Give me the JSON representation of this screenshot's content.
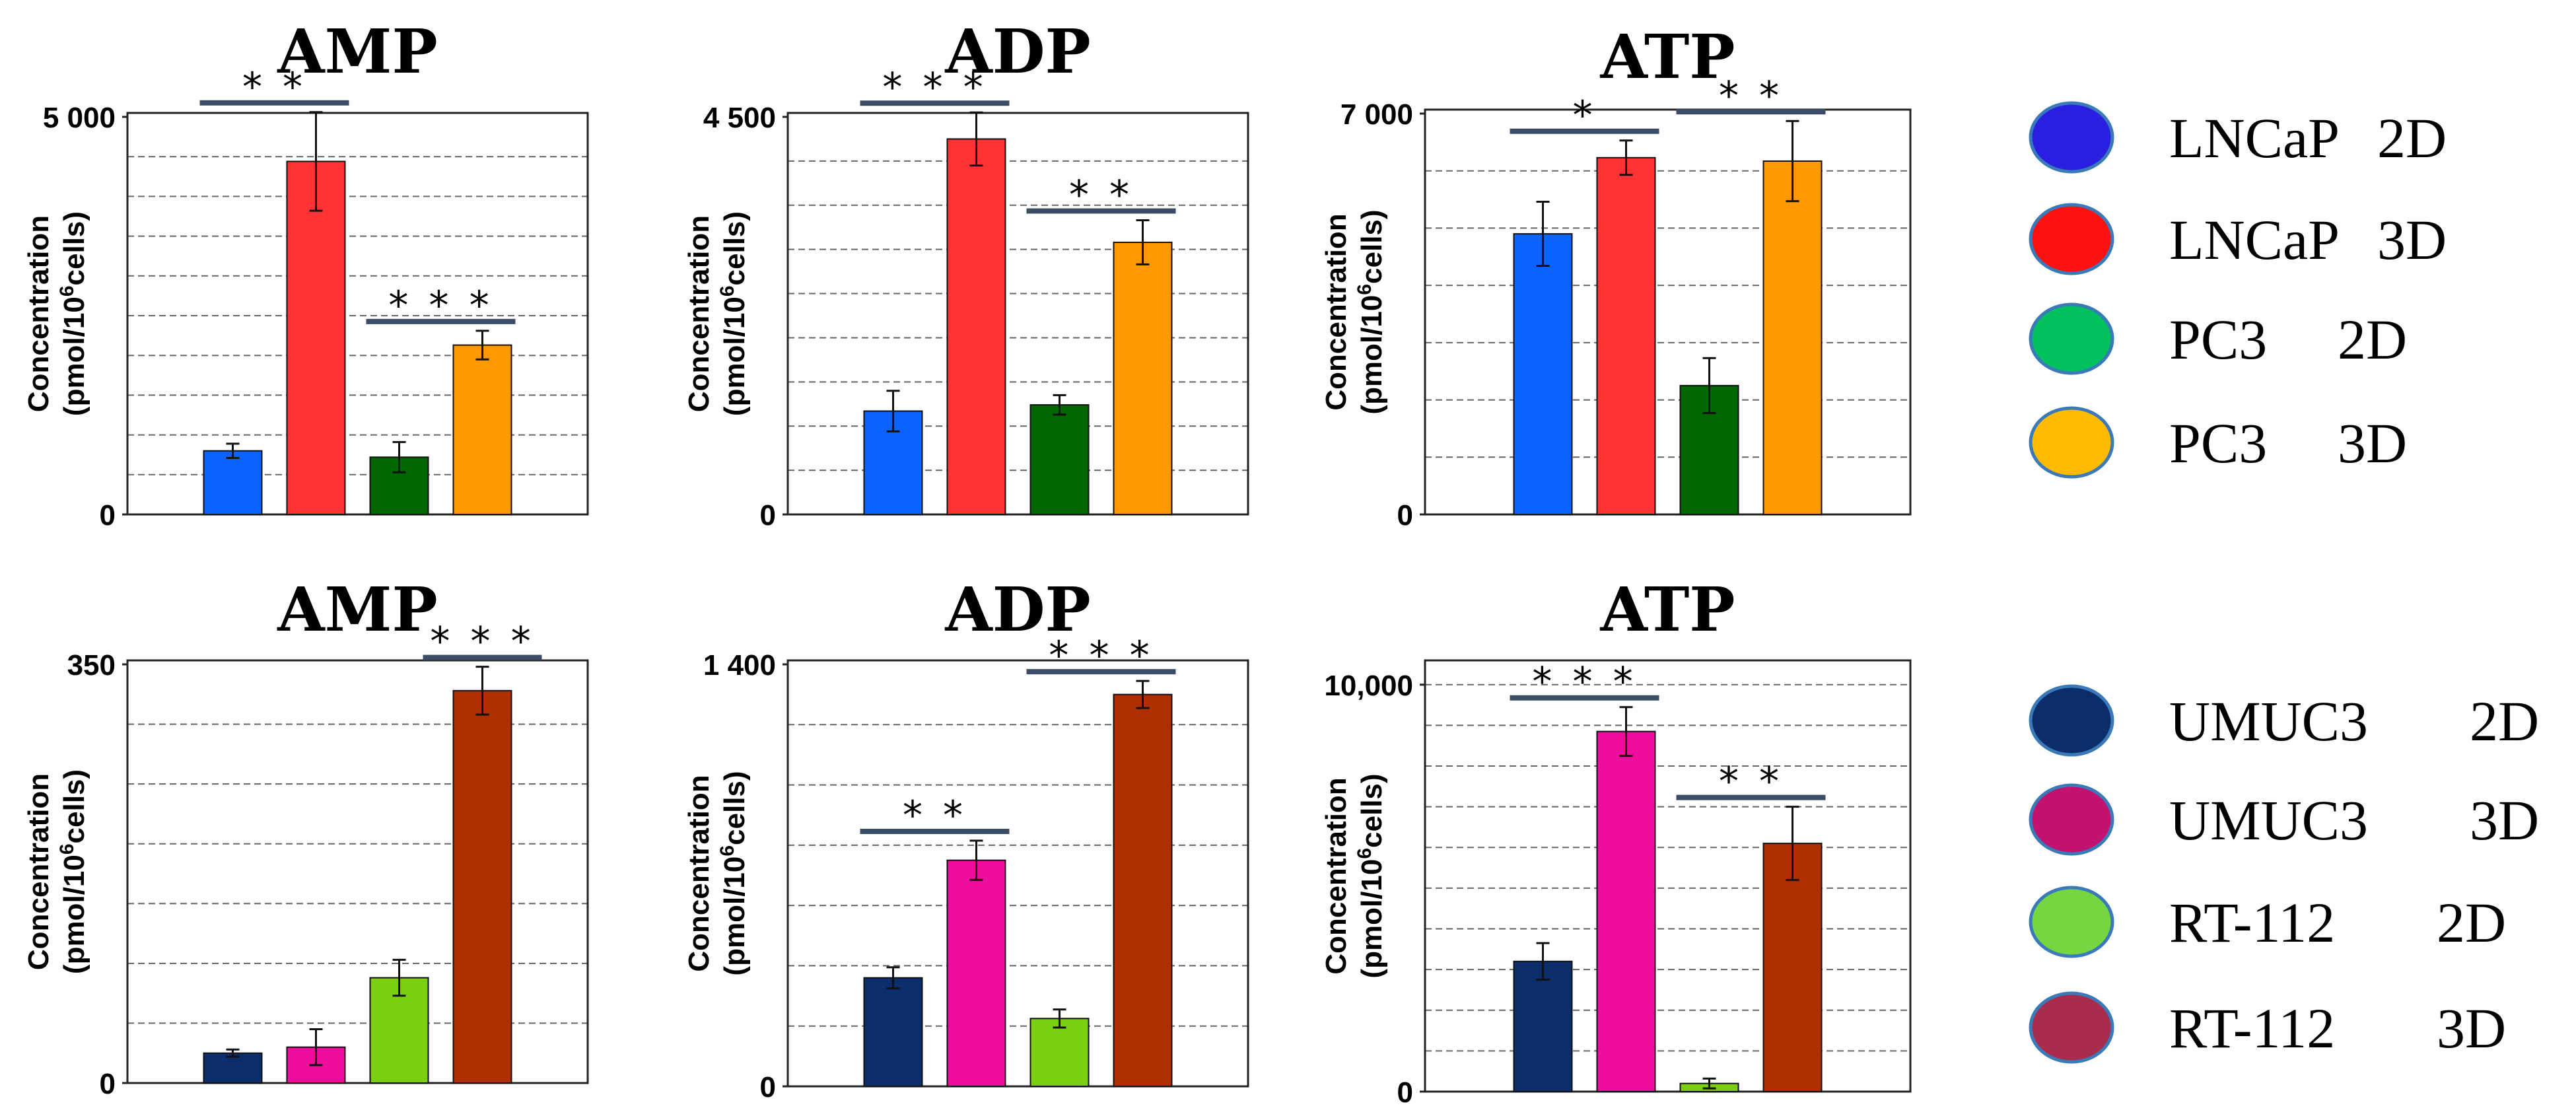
{
  "chart_data": [
    {
      "type": "bar",
      "title": "AMP",
      "ylabel": [
        "Concentration",
        "(pmol/10",
        "6",
        "cells)"
      ],
      "categories": [
        "LNCaP 2D",
        "LNCaP 3D",
        "PC3 2D",
        "PC3 3D"
      ],
      "values": [
        800,
        4440,
        720,
        2130
      ],
      "errors": [
        90,
        620,
        190,
        180
      ],
      "ylim": [
        0,
        5000
      ],
      "yticks": [
        0,
        5000
      ],
      "ytick_labels": [
        "0",
        "5 000"
      ],
      "minor_step": 500,
      "significance": [
        {
          "label": "* *",
          "bars": [
            0,
            1
          ]
        },
        {
          "label": "* * *",
          "bars": [
            2,
            3
          ]
        }
      ]
    },
    {
      "type": "bar",
      "title": "ADP",
      "ylabel": [
        "Concentration",
        "(pmol/10",
        "6",
        "cells)"
      ],
      "categories": [
        "LNCaP 2D",
        "LNCaP 3D",
        "PC3 2D",
        "PC3 3D"
      ],
      "values": [
        1170,
        4250,
        1240,
        3080
      ],
      "errors": [
        230,
        300,
        110,
        250
      ],
      "ylim": [
        0,
        4500
      ],
      "yticks": [
        0,
        4500
      ],
      "ytick_labels": [
        "0",
        "4 500"
      ],
      "minor_step": 500,
      "significance": [
        {
          "label": "* * *",
          "bars": [
            0,
            1
          ]
        },
        {
          "label": "* *",
          "bars": [
            2,
            3
          ]
        }
      ]
    },
    {
      "type": "bar",
      "title": "ATP",
      "ylabel": [
        "Concentration",
        "(pmol/10",
        "6",
        "cells)"
      ],
      "categories": [
        "LNCaP 2D",
        "LNCaP 3D",
        "PC3 2D",
        "PC3 3D"
      ],
      "values": [
        4900,
        6230,
        2250,
        6170
      ],
      "errors": [
        560,
        300,
        480,
        700
      ],
      "ylim": [
        0,
        7000
      ],
      "yticks": [
        0,
        7000
      ],
      "ytick_labels": [
        "0",
        "7 000"
      ],
      "minor_step": 1000,
      "significance": [
        {
          "label": "*",
          "bars": [
            0,
            1
          ]
        },
        {
          "label": "* *",
          "bars": [
            2,
            3
          ]
        }
      ]
    },
    {
      "type": "bar",
      "title": "AMP",
      "ylabel": [
        "Concentration",
        "(pmol/10",
        "6",
        "cells)"
      ],
      "categories": [
        "UMUC3 2D",
        "UMUC3 3D",
        "RT-112 2D",
        "RT-112 3D"
      ],
      "values": [
        25,
        30,
        88,
        328
      ],
      "errors": [
        3,
        15,
        15,
        20
      ],
      "ylim": [
        0,
        350
      ],
      "yticks": [
        0,
        350
      ],
      "ytick_labels": [
        "0",
        "350"
      ],
      "minor_step": 50,
      "significance": [
        {
          "label": "* * *",
          "bars": [
            3,
            3
          ]
        }
      ]
    },
    {
      "type": "bar",
      "title": "ADP",
      "ylabel": [
        "Concentration",
        "(pmol/10",
        "6",
        "cells)"
      ],
      "categories": [
        "UMUC3 2D",
        "UMUC3 3D",
        "RT-112 2D",
        "RT-112 3D"
      ],
      "values": [
        360,
        750,
        225,
        1300
      ],
      "errors": [
        35,
        65,
        30,
        45
      ],
      "ylim": [
        0,
        1400
      ],
      "yticks": [
        0,
        1400
      ],
      "ytick_labels": [
        "0",
        "1 400"
      ],
      "minor_step": 200,
      "significance": [
        {
          "label": "* *",
          "bars": [
            0,
            1
          ]
        },
        {
          "label": "* * *",
          "bars": [
            2,
            3
          ]
        }
      ]
    },
    {
      "type": "bar",
      "title": "ATP",
      "ylabel": [
        "Concentration",
        "(pmol/10",
        "6",
        "cells)"
      ],
      "categories": [
        "UMUC3 2D",
        "UMUC3 3D",
        "RT-112 2D",
        "RT-112 3D"
      ],
      "values": [
        3200,
        8850,
        200,
        6100
      ],
      "errors": [
        450,
        600,
        120,
        900
      ],
      "ylim": [
        0,
        10500
      ],
      "yticks": [
        0,
        10000
      ],
      "ytick_labels": [
        "0",
        "10,000"
      ],
      "minor_step": 1000,
      "significance": [
        {
          "label": "* * *",
          "bars": [
            0,
            1
          ]
        },
        {
          "label": "* *",
          "bars": [
            2,
            3
          ]
        }
      ]
    }
  ],
  "colors": {
    "row1": [
      "#0a64ff",
      "#ff3333",
      "#006600",
      "#ff9900"
    ],
    "row2": [
      "#0b2d6b",
      "#ee0d9c",
      "#7ad010",
      "#b02e00"
    ],
    "legend_row1": [
      "#2a1fe0",
      "#ff1111",
      "#00c060",
      "#ffbb00"
    ],
    "legend_row2": [
      "#0b2d6b",
      "#c0126e",
      "#74d73f",
      "#a82c4c"
    ],
    "sig_line": "#3b4d66"
  },
  "legend": [
    {
      "name": "LNCaP",
      "dim": "2D"
    },
    {
      "name": "LNCaP",
      "dim": "3D"
    },
    {
      "name": "PC3",
      "dim": "2D"
    },
    {
      "name": "PC3",
      "dim": "3D"
    },
    {
      "name": "UMUC3",
      "dim": "2D"
    },
    {
      "name": "UMUC3",
      "dim": "3D"
    },
    {
      "name": "RT-112",
      "dim": "2D"
    },
    {
      "name": "RT-112",
      "dim": "3D"
    }
  ]
}
